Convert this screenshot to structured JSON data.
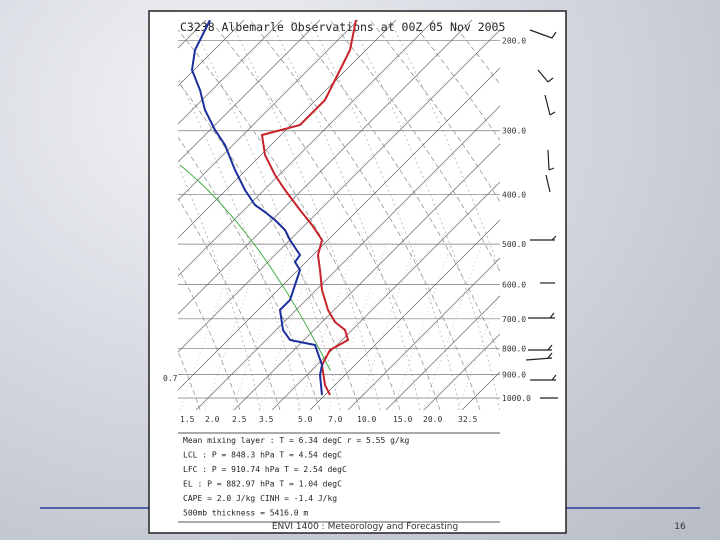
{
  "slide": {
    "figure": {
      "title": "C3238 Albemarle Observations at 00Z 05 Nov 2005",
      "pressure_labels": [
        "200.0",
        "300.0",
        "400.0",
        "500.0",
        "600.0",
        "700.0",
        "800.0",
        "900.0",
        "1000.0"
      ],
      "mixing_ratio_labels": [
        "1.5",
        "2.0",
        "2.5",
        "3.5",
        "5.0",
        "7.0",
        "10.0",
        "15.0",
        "20.0",
        "32.5"
      ],
      "left_label": "0.7",
      "info_lines": [
        "Mean mixing layer : T = 6.34 degC  r = 5.55 g/kg",
        "LCL : P = 848.3 hPa  T = 4.54 degC",
        "LFC : P = 910.74 hPa  T = 2.54 degC",
        "EL : P = 882.97 hPa  T = 1.04 degC",
        "CAPE = 2.0 J/kg  CINH = -1.4 J/kg",
        "500mb thickness = 5416.0 m"
      ]
    },
    "footer": "ENVI 1400 : Meteorology and Forecasting",
    "page_number": "16"
  }
}
